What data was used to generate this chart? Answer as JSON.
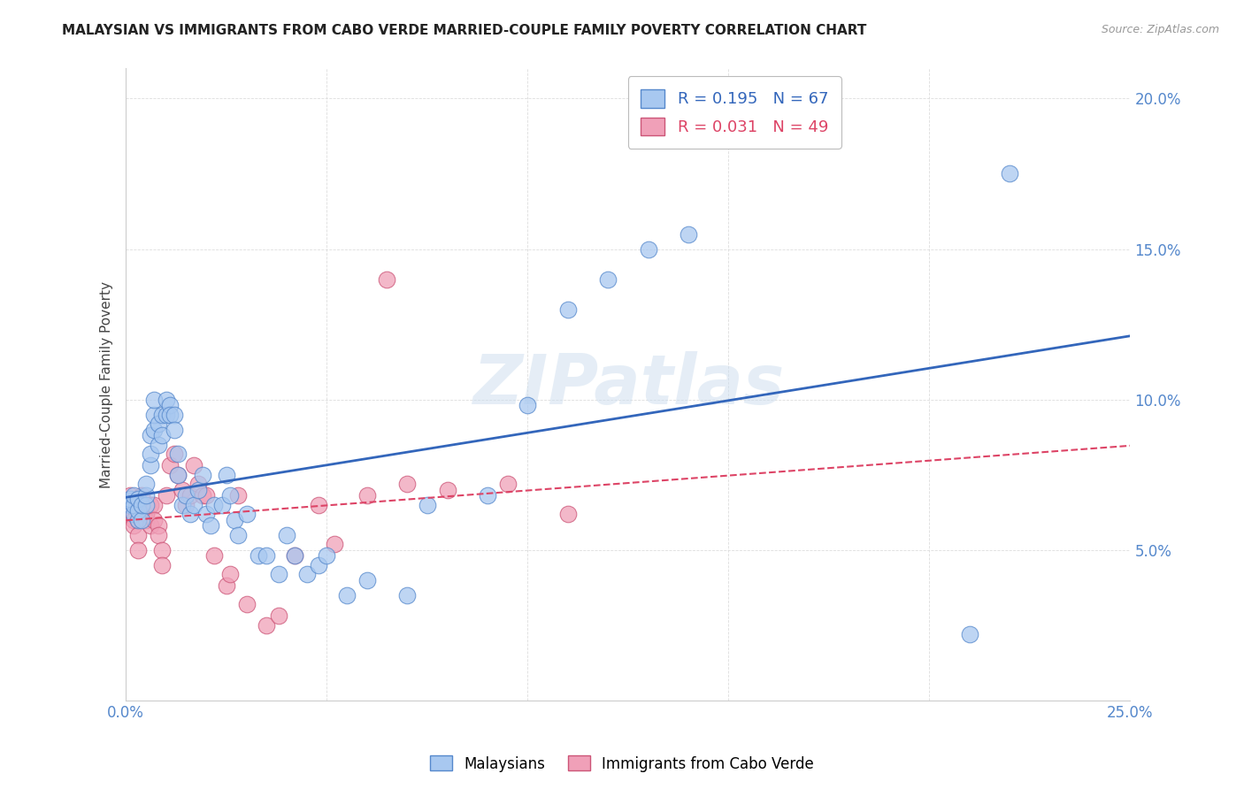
{
  "title": "MALAYSIAN VS IMMIGRANTS FROM CABO VERDE MARRIED-COUPLE FAMILY POVERTY CORRELATION CHART",
  "source": "Source: ZipAtlas.com",
  "ylabel": "Married-Couple Family Poverty",
  "xlim": [
    0.0,
    0.25
  ],
  "ylim": [
    0.0,
    0.21
  ],
  "xticks": [
    0.0,
    0.05,
    0.1,
    0.15,
    0.2,
    0.25
  ],
  "yticks": [
    0.0,
    0.05,
    0.1,
    0.15,
    0.2
  ],
  "xtick_labels": [
    "0.0%",
    "",
    "",
    "",
    "",
    "25.0%"
  ],
  "ytick_labels_right": [
    "",
    "5.0%",
    "10.0%",
    "15.0%",
    "20.0%"
  ],
  "legend_entry1": "R = 0.195   N = 67",
  "legend_entry2": "R = 0.031   N = 49",
  "legend_label1": "Malaysians",
  "legend_label2": "Immigrants from Cabo Verde",
  "blue_scatter_color": "#A8C8F0",
  "blue_edge_color": "#5588CC",
  "pink_scatter_color": "#F0A0B8",
  "pink_edge_color": "#CC5577",
  "blue_line_color": "#3366BB",
  "pink_line_color": "#DD4466",
  "watermark": "ZIPatlas",
  "background_color": "#ffffff",
  "grid_color": "#dddddd",
  "malaysian_x": [
    0.001,
    0.001,
    0.001,
    0.002,
    0.002,
    0.002,
    0.003,
    0.003,
    0.003,
    0.004,
    0.004,
    0.005,
    0.005,
    0.005,
    0.006,
    0.006,
    0.006,
    0.007,
    0.007,
    0.007,
    0.008,
    0.008,
    0.009,
    0.009,
    0.01,
    0.01,
    0.011,
    0.011,
    0.012,
    0.012,
    0.013,
    0.013,
    0.014,
    0.015,
    0.016,
    0.017,
    0.018,
    0.019,
    0.02,
    0.021,
    0.022,
    0.024,
    0.025,
    0.026,
    0.027,
    0.028,
    0.03,
    0.033,
    0.035,
    0.038,
    0.04,
    0.042,
    0.045,
    0.048,
    0.05,
    0.055,
    0.06,
    0.07,
    0.075,
    0.09,
    0.1,
    0.11,
    0.12,
    0.13,
    0.14,
    0.21,
    0.22
  ],
  "malaysian_y": [
    0.065,
    0.066,
    0.067,
    0.062,
    0.065,
    0.068,
    0.06,
    0.063,
    0.067,
    0.06,
    0.065,
    0.065,
    0.068,
    0.072,
    0.078,
    0.082,
    0.088,
    0.09,
    0.095,
    0.1,
    0.085,
    0.092,
    0.088,
    0.095,
    0.095,
    0.1,
    0.098,
    0.095,
    0.095,
    0.09,
    0.082,
    0.075,
    0.065,
    0.068,
    0.062,
    0.065,
    0.07,
    0.075,
    0.062,
    0.058,
    0.065,
    0.065,
    0.075,
    0.068,
    0.06,
    0.055,
    0.062,
    0.048,
    0.048,
    0.042,
    0.055,
    0.048,
    0.042,
    0.045,
    0.048,
    0.035,
    0.04,
    0.035,
    0.065,
    0.068,
    0.098,
    0.13,
    0.14,
    0.15,
    0.155,
    0.022,
    0.175
  ],
  "caboverde_x": [
    0.001,
    0.001,
    0.001,
    0.002,
    0.002,
    0.002,
    0.002,
    0.003,
    0.003,
    0.003,
    0.004,
    0.004,
    0.005,
    0.005,
    0.006,
    0.006,
    0.007,
    0.007,
    0.008,
    0.008,
    0.009,
    0.009,
    0.01,
    0.011,
    0.012,
    0.013,
    0.014,
    0.015,
    0.016,
    0.017,
    0.018,
    0.019,
    0.02,
    0.022,
    0.025,
    0.026,
    0.028,
    0.03,
    0.035,
    0.038,
    0.042,
    0.048,
    0.052,
    0.06,
    0.065,
    0.07,
    0.08,
    0.095,
    0.11
  ],
  "caboverde_y": [
    0.063,
    0.065,
    0.068,
    0.062,
    0.065,
    0.06,
    0.058,
    0.06,
    0.055,
    0.05,
    0.065,
    0.068,
    0.06,
    0.062,
    0.065,
    0.058,
    0.065,
    0.06,
    0.058,
    0.055,
    0.05,
    0.045,
    0.068,
    0.078,
    0.082,
    0.075,
    0.07,
    0.065,
    0.068,
    0.078,
    0.072,
    0.068,
    0.068,
    0.048,
    0.038,
    0.042,
    0.068,
    0.032,
    0.025,
    0.028,
    0.048,
    0.065,
    0.052,
    0.068,
    0.14,
    0.072,
    0.07,
    0.072,
    0.062
  ]
}
